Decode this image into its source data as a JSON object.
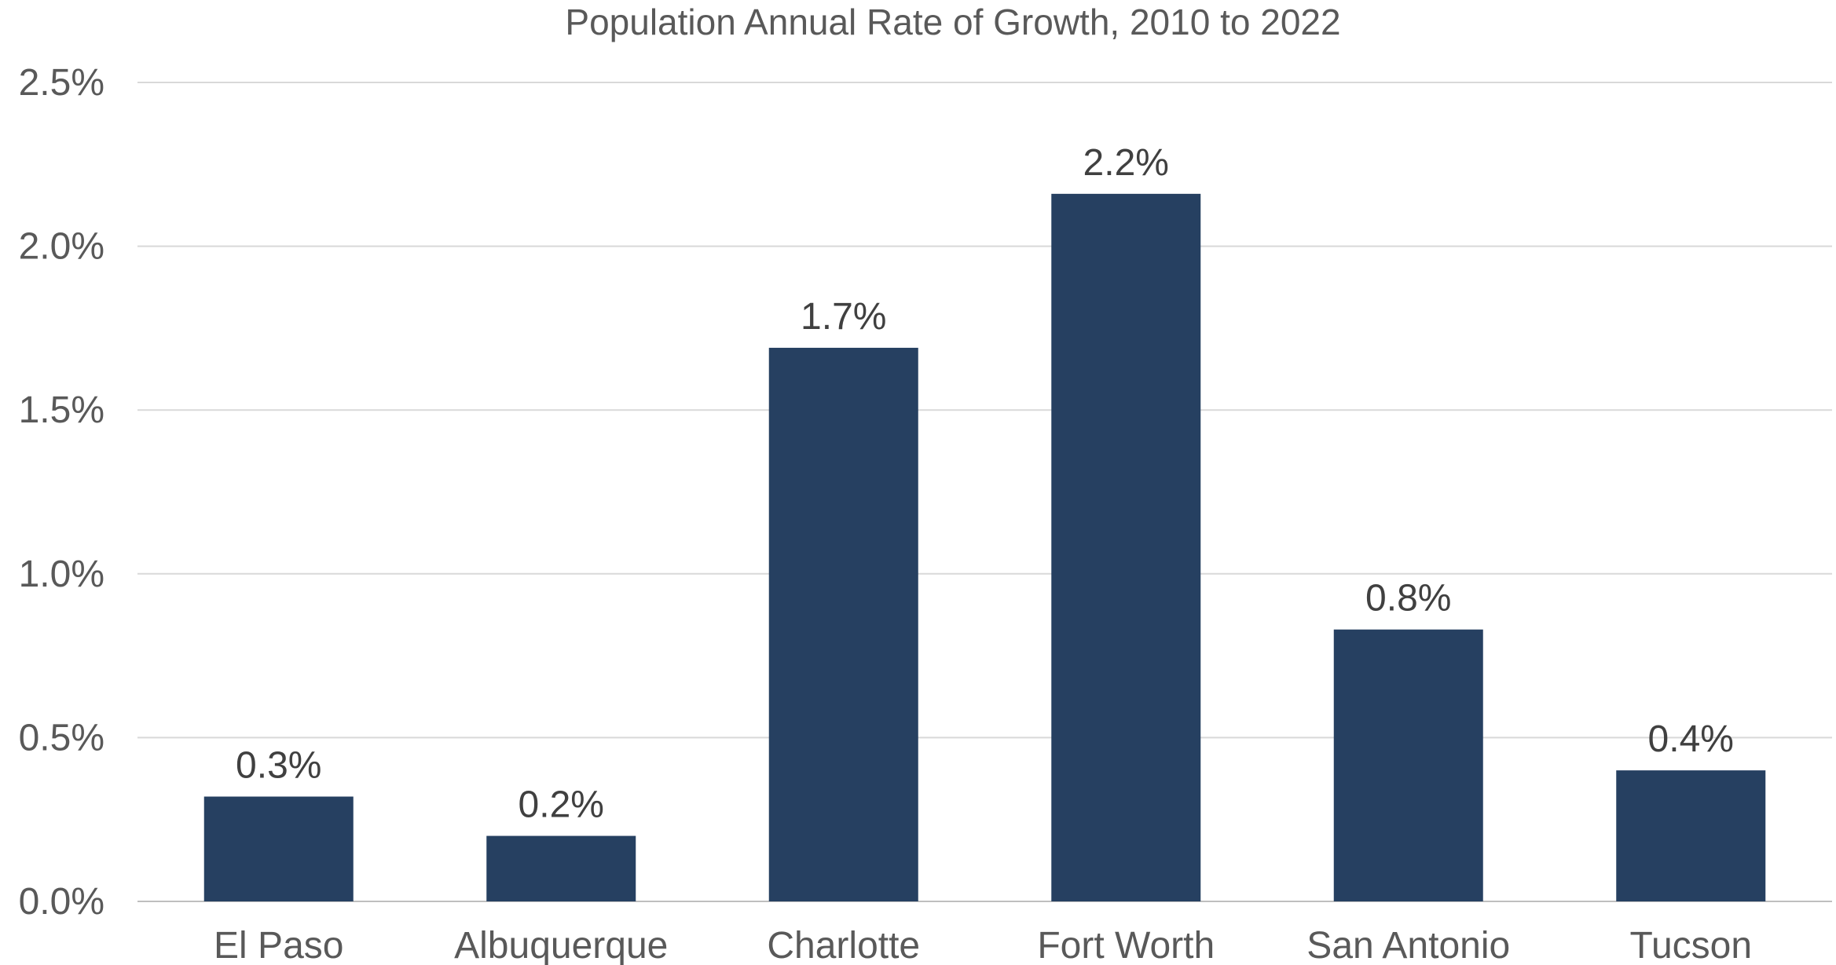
{
  "chart_data": {
    "type": "bar",
    "title": "Population Annual Rate of Growth, 2010 to 2022",
    "xlabel": "",
    "ylabel": "",
    "categories": [
      "El Paso",
      "Albuquerque",
      "Charlotte",
      "Fort Worth",
      "San Antonio",
      "Tucson"
    ],
    "values": [
      0.32,
      0.2,
      1.69,
      2.16,
      0.83,
      0.4
    ],
    "data_labels": [
      "0.3%",
      "0.2%",
      "1.7%",
      "2.2%",
      "0.8%",
      "0.4%"
    ],
    "ylim": [
      0,
      2.5
    ],
    "yticks": [
      0,
      0.5,
      1.0,
      1.5,
      2.0,
      2.5
    ],
    "ytick_labels": [
      "0.0%",
      "0.5%",
      "1.0%",
      "1.5%",
      "2.0%",
      "2.5%"
    ],
    "grid": true,
    "legend": "none",
    "colors": {
      "bar": "#264061",
      "grid": "#d9d9d9",
      "text": "#595959",
      "data_label": "#404040"
    }
  }
}
